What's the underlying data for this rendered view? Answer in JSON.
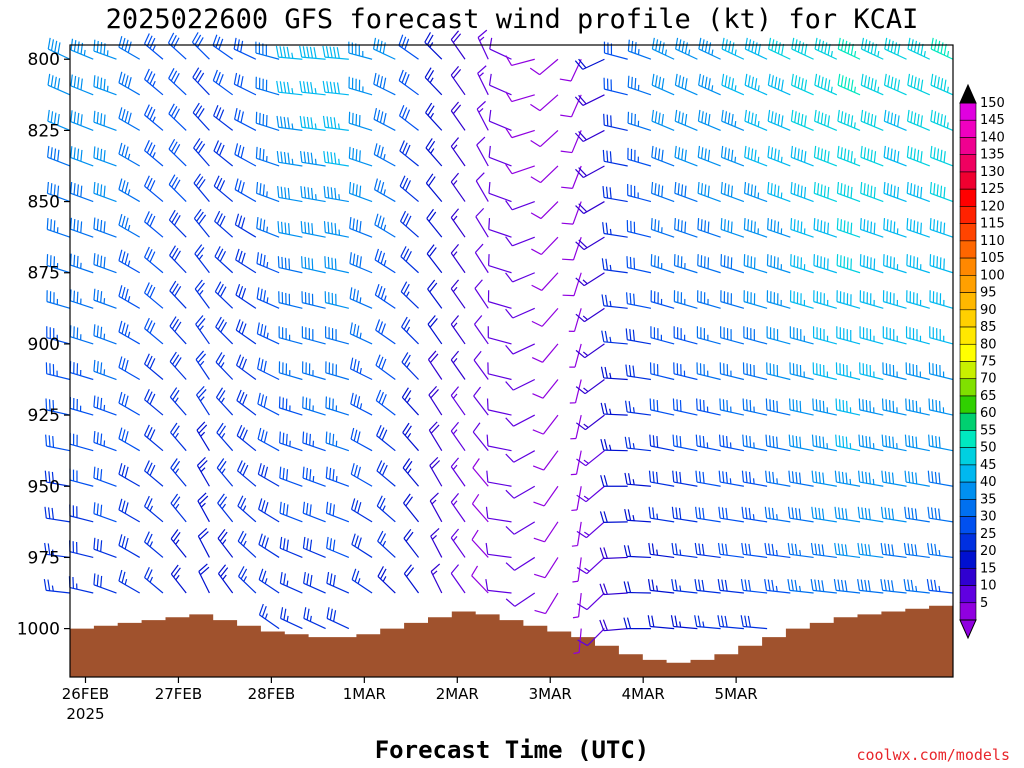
{
  "chart_data": {
    "type": "wind-barb-profile",
    "title": "2025022600 GFS forecast wind profile (kt) for KCAI",
    "xlabel": "Forecast Time (UTC)",
    "credit": "coolwx.com/models",
    "x_tick_labels": [
      "26FEB",
      "27FEB",
      "28FEB",
      "1MAR",
      "2MAR",
      "3MAR",
      "4MAR",
      "5MAR"
    ],
    "x_year_label": "2025",
    "x_range_hours": [
      0,
      228
    ],
    "y_tick_labels": [
      "800",
      "825",
      "850",
      "875",
      "900",
      "925",
      "950",
      "975",
      "1000"
    ],
    "y_range_hpa": [
      795,
      1017
    ],
    "barb_levels_hpa": [
      800,
      812.5,
      825,
      837.5,
      850,
      862.5,
      875,
      887.5,
      900,
      912.5,
      925,
      937.5,
      950,
      962.5,
      975,
      987.5,
      1000
    ],
    "barb_interval_hours": 6,
    "colorbar": {
      "labels": [
        "150",
        "145",
        "140",
        "135",
        "130",
        "125",
        "120",
        "115",
        "110",
        "105",
        "100",
        "95",
        "90",
        "85",
        "80",
        "75",
        "70",
        "65",
        "60",
        "55",
        "50",
        "45",
        "40",
        "35",
        "30",
        "25",
        "20",
        "15",
        "10",
        "5"
      ],
      "colors": [
        "#e000e0",
        "#f000c0",
        "#f00090",
        "#f00060",
        "#f00030",
        "#ff0000",
        "#ff2200",
        "#ff4400",
        "#ff6600",
        "#ff8800",
        "#ffa000",
        "#ffb800",
        "#ffd000",
        "#ffe800",
        "#ffff00",
        "#c8f000",
        "#80e000",
        "#30d000",
        "#00d070",
        "#00e8c0",
        "#00d0e0",
        "#00b8f0",
        "#0090f0",
        "#0070f0",
        "#0050f0",
        "#0030e0",
        "#0010d0",
        "#3000d0",
        "#6000e0",
        "#9000e0"
      ]
    },
    "series": [
      {
        "time_hours": [
          0,
          12,
          24,
          36,
          48,
          60,
          72,
          84,
          96,
          108,
          120,
          132,
          144,
          156,
          168,
          180,
          192,
          204,
          216,
          228
        ],
        "speed_kt_850": [
          38,
          40,
          32,
          28,
          30,
          42,
          44,
          36,
          22,
          12,
          10,
          8,
          28,
          38,
          40,
          44,
          48,
          52,
          48,
          50
        ],
        "speed_kt_950": [
          30,
          32,
          28,
          24,
          28,
          32,
          34,
          28,
          18,
          10,
          12,
          6,
          22,
          28,
          32,
          35,
          40,
          44,
          42,
          40
        ],
        "direction_deg_850": [
          290,
          290,
          310,
          320,
          300,
          280,
          280,
          300,
          320,
          330,
          250,
          200,
          280,
          290,
          290,
          290,
          290,
          290,
          290,
          290
        ],
        "direction_deg_950": [
          280,
          290,
          310,
          330,
          310,
          290,
          290,
          310,
          330,
          320,
          240,
          190,
          270,
          280,
          280,
          280,
          280,
          280,
          280,
          280
        ]
      }
    ],
    "terrain_surface_hpa": [
      1000,
      999,
      998,
      997,
      996,
      995,
      997,
      999,
      1001,
      1002,
      1003,
      1003,
      1002,
      1000,
      998,
      996,
      994,
      995,
      997,
      999,
      1001,
      1003,
      1006,
      1009,
      1011,
      1012,
      1011,
      1009,
      1006,
      1003,
      1000,
      998,
      996,
      995,
      994,
      993,
      992,
      991
    ]
  },
  "ui": {
    "title": "2025022600 GFS forecast wind profile (kt) for KCAI"
  }
}
